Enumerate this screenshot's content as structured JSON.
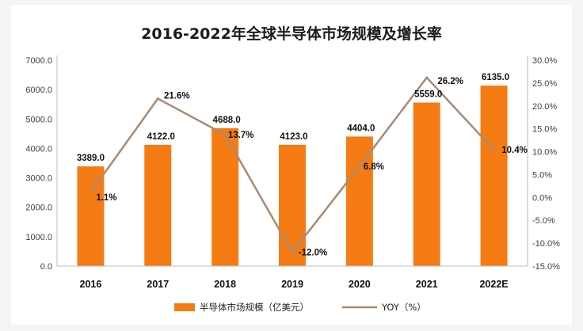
{
  "chart_data": {
    "type": "bar",
    "title": "2016-2022年全球半导体市场规模及增长率",
    "categories": [
      "2016",
      "2017",
      "2018",
      "2019",
      "2020",
      "2021",
      "2022E"
    ],
    "series": [
      {
        "name": "半导体市场规模（亿美元）",
        "type": "bar",
        "axis": "left",
        "color": "#f57c14",
        "values": [
          3389.0,
          4122.0,
          4688.0,
          4123.0,
          4404.0,
          5559.0,
          6135.0
        ],
        "labels": [
          "3389.0",
          "4122.0",
          "4688.0",
          "4123.0",
          "4404.0",
          "5559.0",
          "6135.0"
        ]
      },
      {
        "name": "YOY（%）",
        "type": "line",
        "axis": "right",
        "color": "#a98a73",
        "values": [
          1.1,
          21.6,
          13.7,
          -12.0,
          6.8,
          26.2,
          10.4
        ],
        "labels": [
          "1.1%",
          "21.6%",
          "13.7%",
          "-12.0%",
          "6.8%",
          "26.2%",
          "10.4%"
        ]
      }
    ],
    "y_left": {
      "range": [
        0,
        7000
      ],
      "ticks": [
        "0.0",
        "1000.0",
        "2000.0",
        "3000.0",
        "4000.0",
        "5000.0",
        "6000.0",
        "7000.0"
      ]
    },
    "y_right": {
      "range": [
        -15,
        30
      ],
      "ticks": [
        "-15.0%",
        "-10.0%",
        "-5.0%",
        "0.0%",
        "5.0%",
        "10.0%",
        "15.0%",
        "20.0%",
        "25.0%",
        "30.0%"
      ]
    },
    "grid": false,
    "legend": "bottom"
  }
}
